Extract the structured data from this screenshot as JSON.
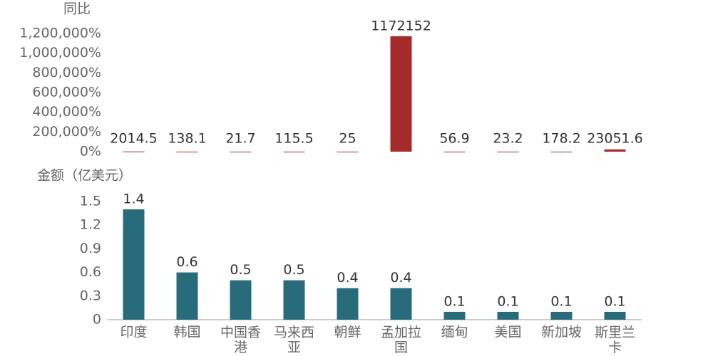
{
  "chart_data": [
    {
      "type": "bar",
      "title": "同比",
      "values": [
        2014.5,
        138.1,
        21.7,
        115.5,
        25,
        1172152,
        56.9,
        23.2,
        178.2,
        23051.6
      ],
      "color": "#a52a2a",
      "ylim": [
        0,
        1200000
      ],
      "yticks": [
        {
          "value": 0,
          "label": "0%"
        },
        {
          "value": 200000,
          "label": "200,000%"
        },
        {
          "value": 400000,
          "label": "400,000%"
        },
        {
          "value": 600000,
          "label": "600,000%"
        },
        {
          "value": 800000,
          "label": "800,000%"
        },
        {
          "value": 1000000,
          "label": "1,000,000%"
        },
        {
          "value": 1200000,
          "label": "1,200,000%"
        }
      ],
      "grid": false
    },
    {
      "type": "bar",
      "title": "金额（亿美元）",
      "categories": [
        "印度",
        "韩国",
        "中国香港",
        "马来西亚",
        "朝鲜",
        "孟加拉国",
        "缅甸",
        "美国",
        "新加坡",
        "斯里兰卡"
      ],
      "values": [
        1.4,
        0.6,
        0.5,
        0.5,
        0.4,
        0.4,
        0.1,
        0.1,
        0.1,
        0.1
      ],
      "color": "#286b7a",
      "ylim": [
        0,
        1.5
      ],
      "yticks": [
        0,
        0.3,
        0.6,
        0.9,
        1.2,
        1.5
      ],
      "grid": false
    }
  ]
}
